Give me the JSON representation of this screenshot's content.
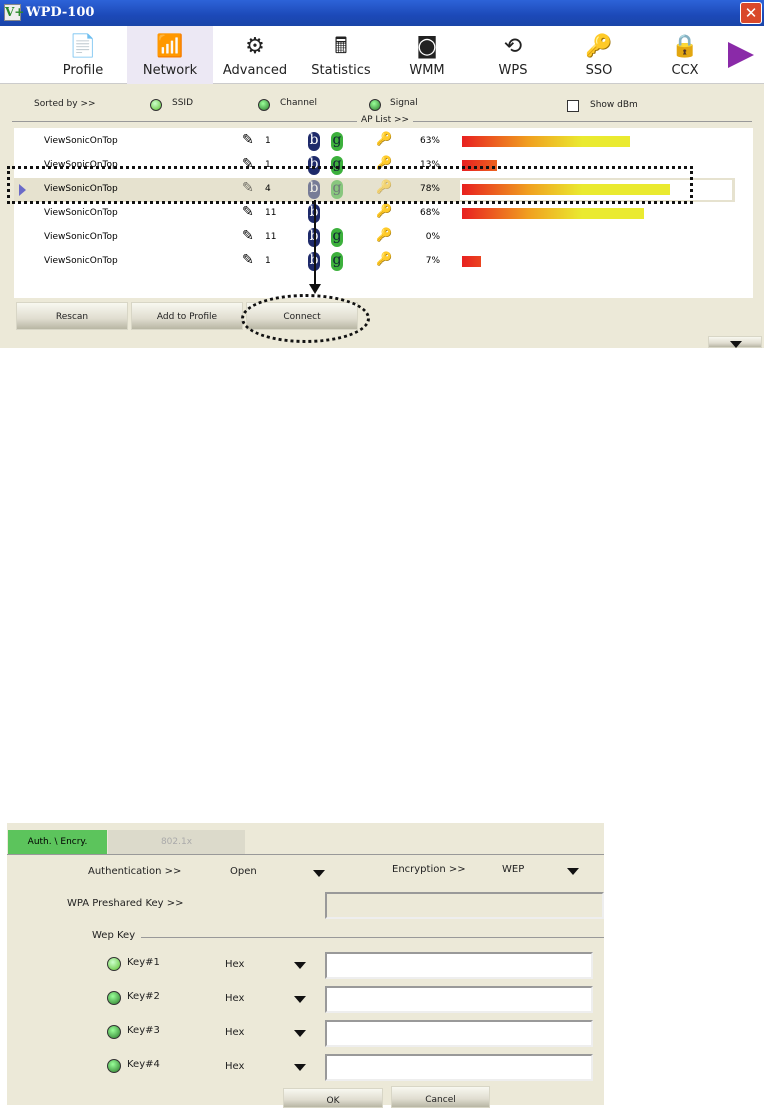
{
  "window": {
    "title": "WPD-100",
    "logo": "V+"
  },
  "toolbar": [
    {
      "label": "Profile",
      "icon": "profile-icon"
    },
    {
      "label": "Network",
      "icon": "router-icon",
      "active": true
    },
    {
      "label": "Advanced",
      "icon": "gears-icon"
    },
    {
      "label": "Statistics",
      "icon": "calculator-icon"
    },
    {
      "label": "WMM",
      "icon": "qos-icon"
    },
    {
      "label": "WPS",
      "icon": "wps-icon"
    },
    {
      "label": "SSO",
      "icon": "sso-icon"
    },
    {
      "label": "CCX",
      "icon": "ccx-icon"
    }
  ],
  "sort": {
    "label": "Sorted by >>",
    "options": [
      "SSID",
      "Channel",
      "Signal"
    ],
    "selected": "SSID",
    "show_dbm": "Show dBm",
    "show_dbm_checked": false
  },
  "ap_list": {
    "label": "AP List >>",
    "rows": [
      {
        "ssid": "ViewSonicOnTop",
        "channel": "1",
        "b": "b",
        "g": "g",
        "signal": "63%",
        "signal_value": 63
      },
      {
        "ssid": "ViewSonicOnTop",
        "channel": "1",
        "b": "b",
        "g": "g",
        "signal": "13%",
        "signal_value": 13
      },
      {
        "ssid": "ViewSonicOnTop",
        "channel": "4",
        "b": "b",
        "g": "g",
        "signal": "78%",
        "signal_value": 78,
        "selected": true
      },
      {
        "ssid": "ViewSonicOnTop",
        "channel": "11",
        "b": "b",
        "g": "",
        "signal": "68%",
        "signal_value": 68
      },
      {
        "ssid": "ViewSonicOnTop",
        "channel": "11",
        "b": "b",
        "g": "g",
        "signal": "0%",
        "signal_value": 0
      },
      {
        "ssid": "ViewSonicOnTop",
        "channel": "1",
        "b": "b",
        "g": "g",
        "signal": "7%",
        "signal_value": 7
      }
    ]
  },
  "buttons": {
    "rescan": "Rescan",
    "add": "Add to Profile",
    "connect": "Connect"
  },
  "dialog": {
    "tabs": [
      "Auth. \\ Encry.",
      "802.1x"
    ],
    "auth_label": "Authentication >>",
    "auth_value": "Open",
    "enc_label": "Encryption >>",
    "enc_value": "WEP",
    "wpa_label": "WPA Preshared Key >>",
    "wpa_value": "",
    "wep_label": "Wep Key",
    "keys": [
      {
        "label": "Key#1",
        "format": "Hex",
        "value": "",
        "selected": true
      },
      {
        "label": "Key#2",
        "format": "Hex",
        "value": ""
      },
      {
        "label": "Key#3",
        "format": "Hex",
        "value": ""
      },
      {
        "label": "Key#4",
        "format": "Hex",
        "value": ""
      }
    ],
    "ok": "OK",
    "cancel": "Cancel"
  }
}
